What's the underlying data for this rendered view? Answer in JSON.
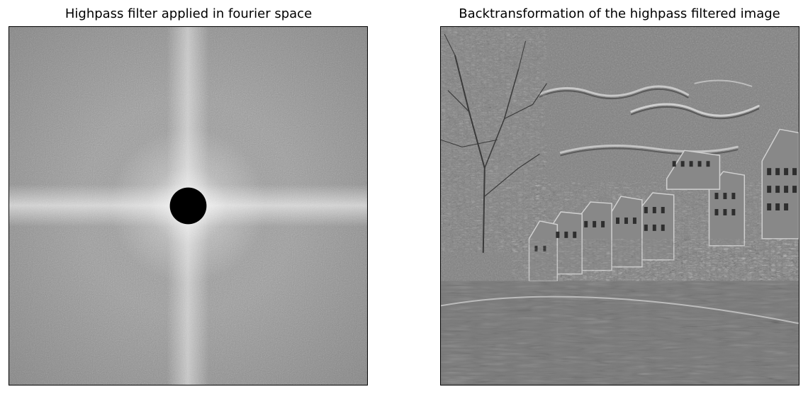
{
  "figure": {
    "panels": [
      {
        "title": "Highpass filter applied in fourier space",
        "image": "fourier-magnitude-spectrum-with-center-masked"
      },
      {
        "title": "Backtransformation of the highpass filtered image",
        "image": "edge-enhanced-riverside-town"
      }
    ]
  },
  "colors": {
    "background": "#ffffff",
    "axis_frame": "#000000",
    "spectrum_base": "#9c9c9c",
    "mask": "#000000",
    "filtered_base": "#808080"
  }
}
